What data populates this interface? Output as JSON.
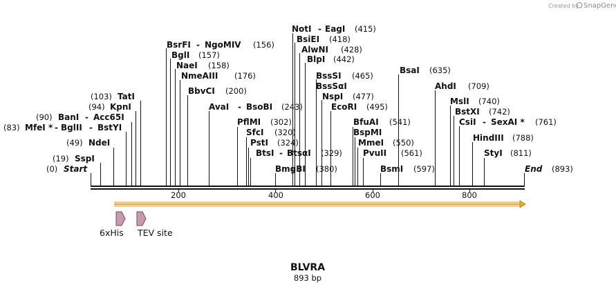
{
  "credit": {
    "prefix": "Created by",
    "brand": "SnapGene"
  },
  "title": "BLVRA",
  "subtitle": "893 bp",
  "ticks": [
    "200",
    "400",
    "600",
    "800"
  ],
  "labels": [
    {
      "text": "NotI",
      "pos": ""
    },
    {
      "text": "-",
      "pos": ""
    },
    {
      "text": "EagI",
      "pos": "(415)"
    },
    {
      "text": "BsiEI",
      "pos": "(418)"
    },
    {
      "text": "AlwNI",
      "pos": "(428)"
    },
    {
      "text": "BlpI",
      "pos": "(442)"
    },
    {
      "text": "BsrFI",
      "pos": ""
    },
    {
      "text": "-",
      "pos": ""
    },
    {
      "text": "NgoMIV",
      "pos": "(156)"
    },
    {
      "text": "BglI",
      "pos": "(157)"
    },
    {
      "text": "NaeI",
      "pos": "(158)"
    },
    {
      "text": "NmeAIII",
      "pos": "(176)"
    },
    {
      "text": "BssSI",
      "pos": "(465)"
    },
    {
      "text": "BssSαI",
      "pos": ""
    },
    {
      "text": "BsaI",
      "pos": "(635)"
    },
    {
      "text": "BbvCI",
      "pos": "(200)"
    },
    {
      "text": "NspI",
      "pos": "(477)"
    },
    {
      "text": "AhdI",
      "pos": "(709)"
    },
    {
      "text": "TatI",
      "pos": "(103)"
    },
    {
      "text": "MslI",
      "pos": "(740)"
    },
    {
      "text": "KpnI",
      "pos": "(94)"
    },
    {
      "text": "AvaI",
      "pos": ""
    },
    {
      "text": "-",
      "pos": ""
    },
    {
      "text": "BsoBI",
      "pos": "(243)"
    },
    {
      "text": "EcoRI",
      "pos": "(495)"
    },
    {
      "text": "BstXI",
      "pos": "(742)"
    },
    {
      "text": "BanI",
      "pos": "(90)"
    },
    {
      "text": "-",
      "pos": ""
    },
    {
      "text": "Acc65I",
      "pos": ""
    },
    {
      "text": "PflMI",
      "pos": "(302)"
    },
    {
      "text": "BfuAI",
      "pos": "(541)"
    },
    {
      "text": "CsiI",
      "pos": ""
    },
    {
      "text": "-",
      "pos": ""
    },
    {
      "text": "SexAI *",
      "pos": "(761)"
    },
    {
      "text": "MfeI *",
      "pos": "(83)"
    },
    {
      "text": "-",
      "pos": ""
    },
    {
      "text": "BglII",
      "pos": ""
    },
    {
      "text": "-",
      "pos": ""
    },
    {
      "text": "BstYI",
      "pos": ""
    },
    {
      "text": "SfcI",
      "pos": "(320)"
    },
    {
      "text": "BspMI",
      "pos": ""
    },
    {
      "text": "HindIII",
      "pos": "(788)"
    },
    {
      "text": "NdeI",
      "pos": "(49)"
    },
    {
      "text": "PstI",
      "pos": "(324)"
    },
    {
      "text": "MmeI",
      "pos": "(550)"
    },
    {
      "text": "StyI",
      "pos": "(811)"
    },
    {
      "text": "SspI",
      "pos": "(19)"
    },
    {
      "text": "BtsI",
      "pos": ""
    },
    {
      "text": "-",
      "pos": ""
    },
    {
      "text": "BtsαI",
      "pos": "(329)"
    },
    {
      "text": "PvuII",
      "pos": "(561)"
    },
    {
      "text": "Start",
      "pos": "(0)"
    },
    {
      "text": "BmgBI",
      "pos": "(380)"
    },
    {
      "text": "BsmI",
      "pos": "(597)"
    },
    {
      "text": "End",
      "pos": "(893)"
    }
  ],
  "features": [
    {
      "name": "6xHis"
    },
    {
      "name": "TEV site"
    }
  ],
  "colors": {
    "orf": "#f5a623",
    "feature_fill": "#c99aaf",
    "feature_stroke": "#7a4f62",
    "backbone": "#111111"
  }
}
